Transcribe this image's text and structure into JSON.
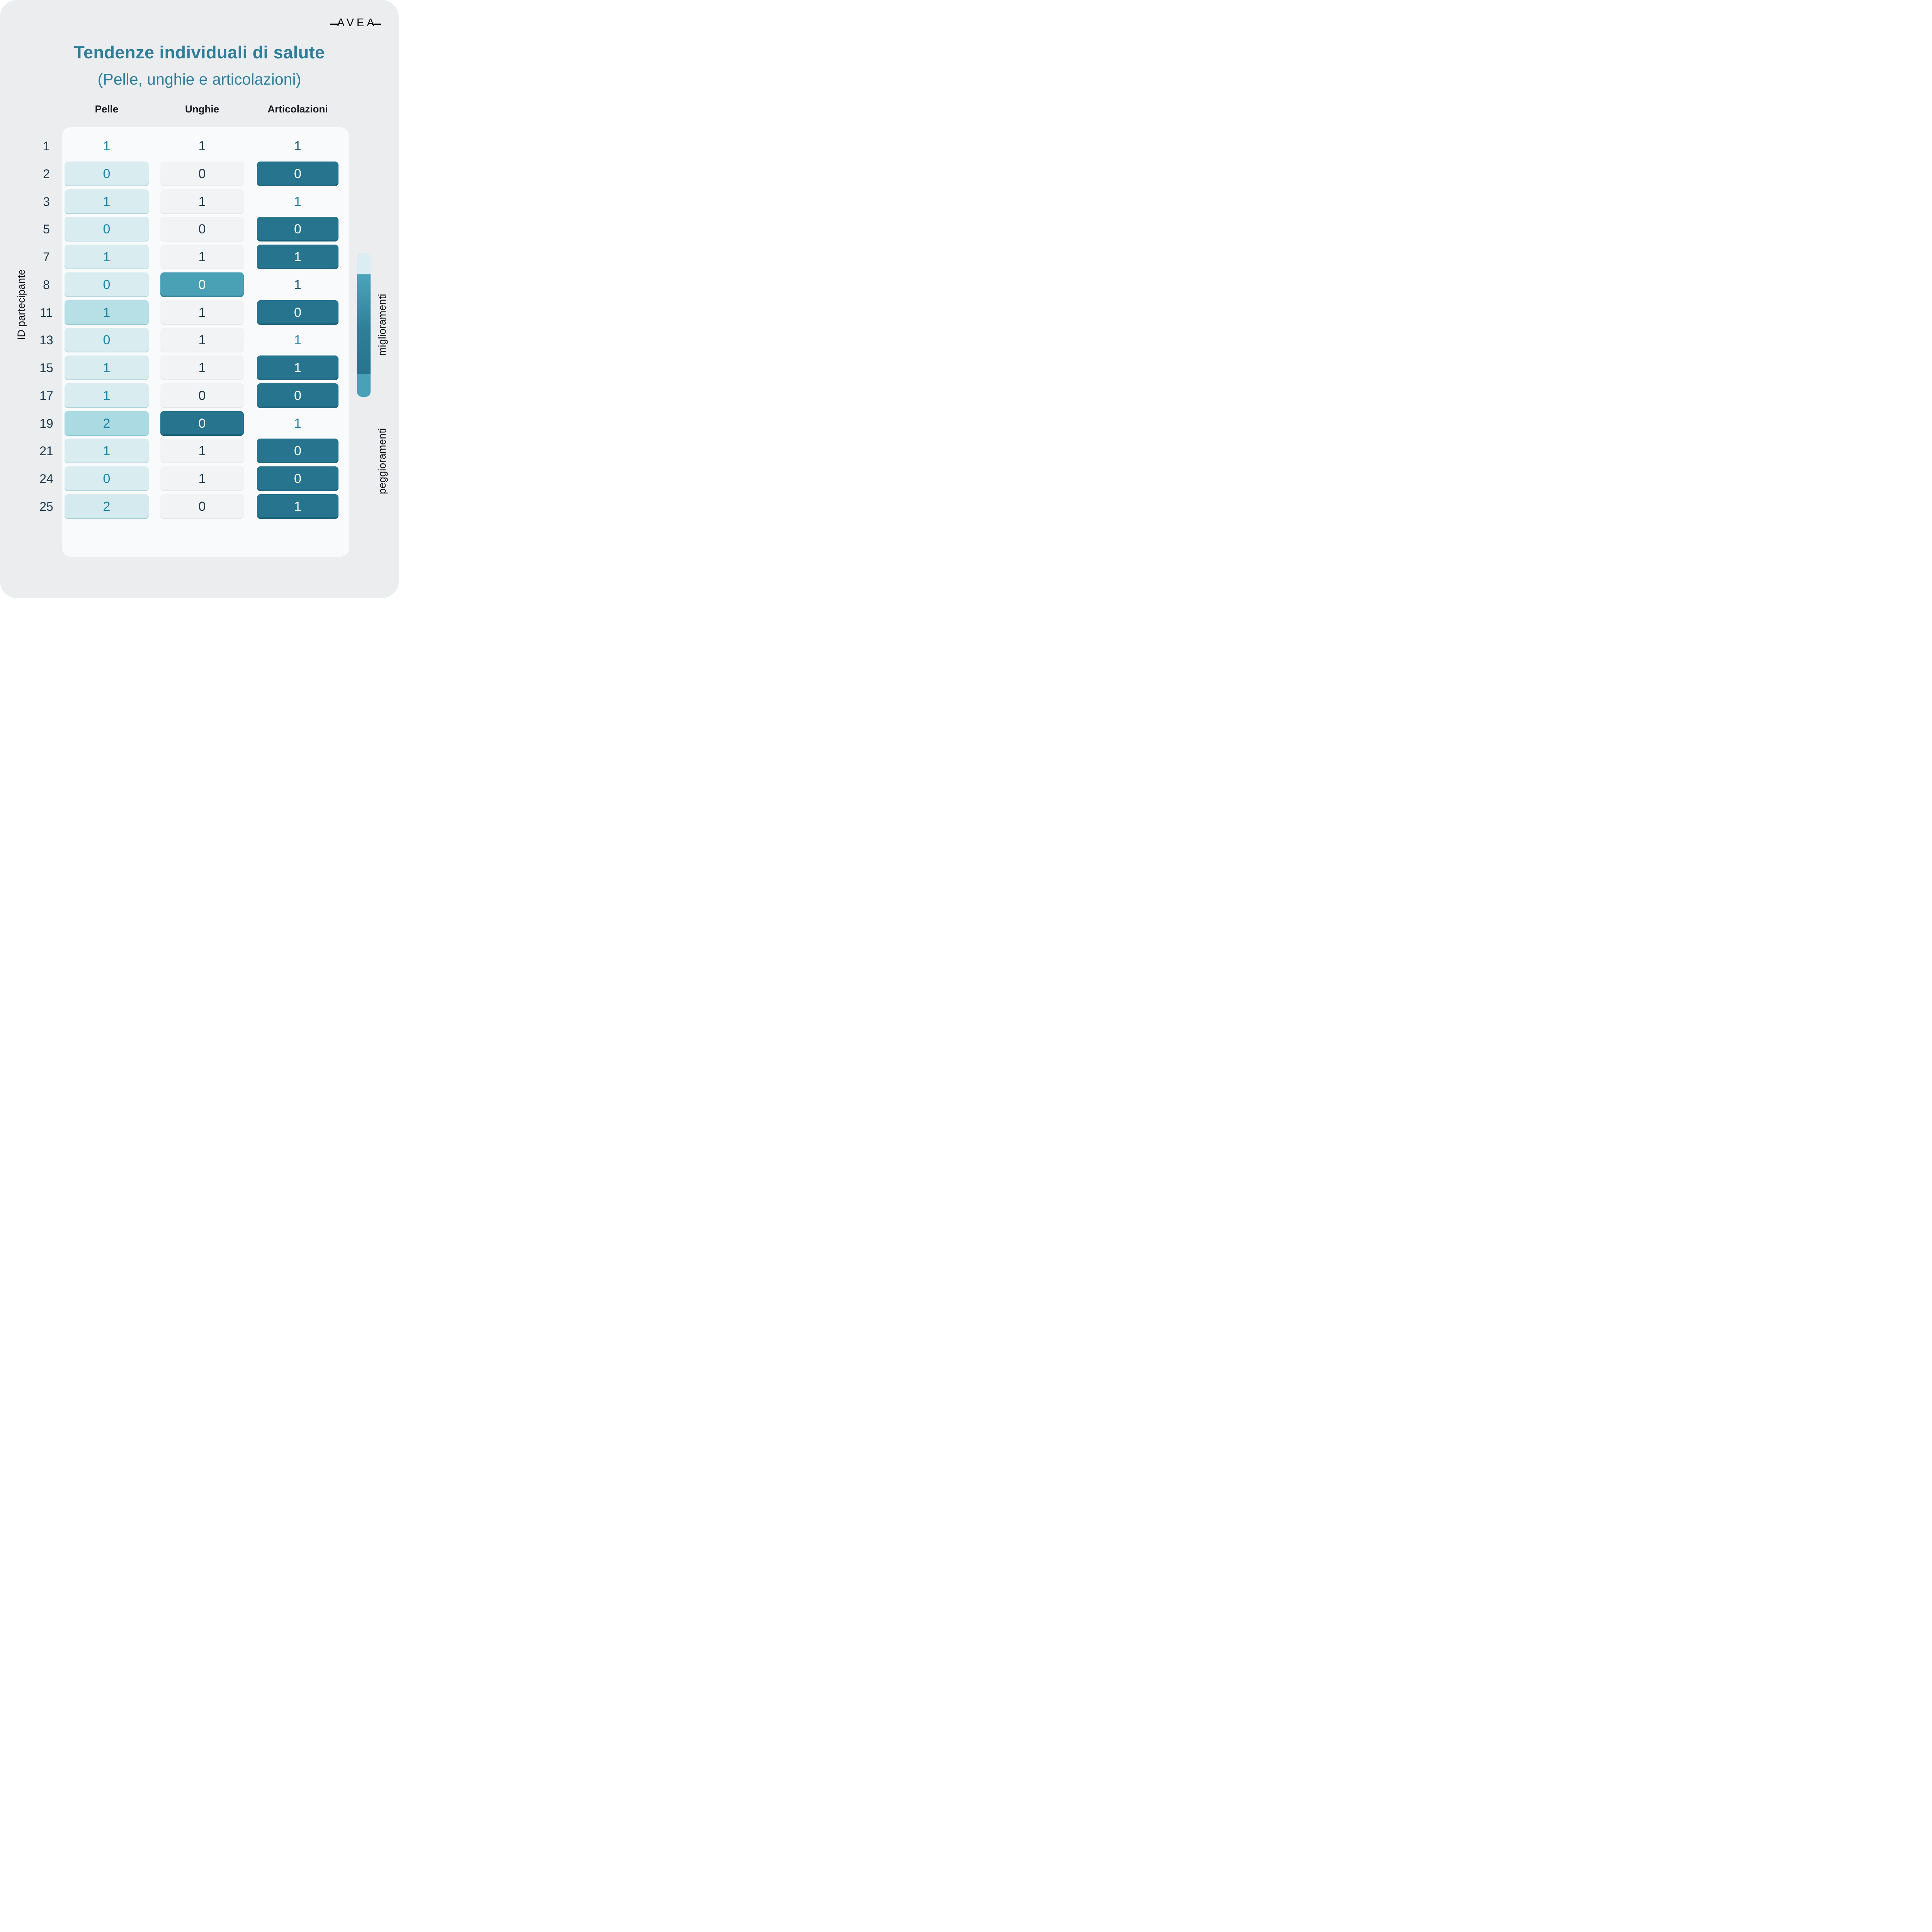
{
  "brand": {
    "logo_text": "AVEA"
  },
  "header": {
    "title": "Tendenze individuali di salute",
    "subtitle": "(Pelle, unghie e articolazioni)"
  },
  "table": {
    "columns": [
      "Pelle",
      "Unghie",
      "Articolazioni"
    ],
    "y_axis_label": "ID partecipante",
    "rows": [
      {
        "id": "1",
        "cells": [
          {
            "v": "1",
            "bg": null,
            "fg": "#1e86a6",
            "tone": "none"
          },
          {
            "v": "1",
            "bg": null,
            "fg": "#16394d",
            "tone": "none"
          },
          {
            "v": "1",
            "bg": null,
            "fg": "#174a5f",
            "tone": "none"
          }
        ]
      },
      {
        "id": "2",
        "cells": [
          {
            "v": "0",
            "bg": "#d9edf0",
            "fg": "#1e86a6",
            "tone": "cyan"
          },
          {
            "v": "0",
            "bg": "#f1f3f5",
            "fg": "#16394d",
            "tone": "gray"
          },
          {
            "v": "0",
            "bg": "#26748e",
            "fg": "#ffffff",
            "tone": "dark"
          }
        ]
      },
      {
        "id": "3",
        "cells": [
          {
            "v": "1",
            "bg": "#d9edf0",
            "fg": "#1e86a6",
            "tone": "cyan"
          },
          {
            "v": "1",
            "bg": "#f1f3f5",
            "fg": "#16394d",
            "tone": "gray"
          },
          {
            "v": "1",
            "bg": null,
            "fg": "#1e7f9f",
            "tone": "none"
          }
        ]
      },
      {
        "id": "5",
        "cells": [
          {
            "v": "0",
            "bg": "#d9edf0",
            "fg": "#1e86a6",
            "tone": "cyan"
          },
          {
            "v": "0",
            "bg": "#f1f3f5",
            "fg": "#16394d",
            "tone": "gray"
          },
          {
            "v": "0",
            "bg": "#26748e",
            "fg": "#ffffff",
            "tone": "dark"
          }
        ]
      },
      {
        "id": "7",
        "cells": [
          {
            "v": "1",
            "bg": "#d9edf0",
            "fg": "#1e86a6",
            "tone": "cyan"
          },
          {
            "v": "1",
            "bg": "#f1f3f5",
            "fg": "#16394d",
            "tone": "gray"
          },
          {
            "v": "1",
            "bg": "#26748e",
            "fg": "#ffffff",
            "tone": "dark"
          }
        ]
      },
      {
        "id": "8",
        "cells": [
          {
            "v": "0",
            "bg": "#d9edf0",
            "fg": "#1e86a6",
            "tone": "cyan"
          },
          {
            "v": "0",
            "bg": "#4aa0b5",
            "fg": "#ffffff",
            "tone": "teal"
          },
          {
            "v": "1",
            "bg": null,
            "fg": "#1b5068",
            "tone": "none"
          }
        ]
      },
      {
        "id": "11",
        "cells": [
          {
            "v": "1",
            "bg": "#b7dfe6",
            "fg": "#1e86a6",
            "tone": "cyan2"
          },
          {
            "v": "1",
            "bg": "#f1f3f5",
            "fg": "#16394d",
            "tone": "gray"
          },
          {
            "v": "0",
            "bg": "#26748e",
            "fg": "#ffffff",
            "tone": "dark"
          }
        ]
      },
      {
        "id": "13",
        "cells": [
          {
            "v": "0",
            "bg": "#d9edf0",
            "fg": "#1e86a6",
            "tone": "cyan"
          },
          {
            "v": "1",
            "bg": "#f1f3f5",
            "fg": "#16394d",
            "tone": "gray"
          },
          {
            "v": "1",
            "bg": null,
            "fg": "#2a87a5",
            "tone": "none"
          }
        ]
      },
      {
        "id": "15",
        "cells": [
          {
            "v": "1",
            "bg": "#d9edf0",
            "fg": "#1e86a6",
            "tone": "cyan"
          },
          {
            "v": "1",
            "bg": "#f1f3f5",
            "fg": "#16394d",
            "tone": "gray"
          },
          {
            "v": "1",
            "bg": "#26748e",
            "fg": "#ffffff",
            "tone": "dark"
          }
        ]
      },
      {
        "id": "17",
        "cells": [
          {
            "v": "1",
            "bg": "#d9edf0",
            "fg": "#1e86a6",
            "tone": "cyan"
          },
          {
            "v": "0",
            "bg": "#f1f3f5",
            "fg": "#16394d",
            "tone": "gray"
          },
          {
            "v": "0",
            "bg": "#26748e",
            "fg": "#ffffff",
            "tone": "dark"
          }
        ]
      },
      {
        "id": "19",
        "cells": [
          {
            "v": "2",
            "bg": "#abdae2",
            "fg": "#1e86a6",
            "tone": "cyan3"
          },
          {
            "v": "0",
            "bg": "#26748e",
            "fg": "#ffffff",
            "tone": "dark"
          },
          {
            "v": "1",
            "bg": null,
            "fg": "#2a7f9e",
            "tone": "none"
          }
        ]
      },
      {
        "id": "21",
        "cells": [
          {
            "v": "1",
            "bg": "#d9edf0",
            "fg": "#1e86a6",
            "tone": "cyan"
          },
          {
            "v": "1",
            "bg": "#f1f3f5",
            "fg": "#16394d",
            "tone": "gray"
          },
          {
            "v": "0",
            "bg": "#26748e",
            "fg": "#ffffff",
            "tone": "dark"
          }
        ]
      },
      {
        "id": "24",
        "cells": [
          {
            "v": "0",
            "bg": "#d9edf0",
            "fg": "#1e86a6",
            "tone": "cyan"
          },
          {
            "v": "1",
            "bg": "#f1f3f5",
            "fg": "#16394d",
            "tone": "gray"
          },
          {
            "v": "0",
            "bg": "#26748e",
            "fg": "#ffffff",
            "tone": "dark"
          }
        ]
      },
      {
        "id": "25",
        "cells": [
          {
            "v": "2",
            "bg": "#d5eaee",
            "fg": "#1e86a6",
            "tone": "cyan4"
          },
          {
            "v": "0",
            "bg": "#f1f3f5",
            "fg": "#16394d",
            "tone": "gray"
          },
          {
            "v": "1",
            "bg": "#26748e",
            "fg": "#ffffff",
            "tone": "dark"
          }
        ]
      }
    ]
  },
  "legend": {
    "top_label": "miglioramenti",
    "bottom_label": "peggioramenti",
    "bar_colors": {
      "cap_top": "#d9edf2",
      "gradient_start": "#4ba5bb",
      "gradient_end": "#26748e",
      "cap_bottom": "#49a1b8"
    }
  },
  "colors": {
    "page_background": "#ecedef",
    "card_background": "#f8fafb",
    "title": "#2e7e9b",
    "header_text": "#16191d",
    "id_text": "#1c3b4e",
    "cell_light_cyan": "#d9edf0",
    "cell_medium_cyan": "#b7dfe6",
    "cell_light_gray": "#f1f3f5",
    "cell_medium_teal": "#4aa0b5",
    "cell_dark_teal": "#26748e"
  },
  "chart_data": {
    "type": "heatmap",
    "title": "Tendenze individuali di salute",
    "subtitle": "(Pelle, unghie e articolazioni)",
    "ylabel": "ID partecipante",
    "categories": [
      "Pelle",
      "Unghie",
      "Articolazioni"
    ],
    "participant_ids": [
      1,
      2,
      3,
      5,
      7,
      8,
      11,
      13,
      15,
      17,
      19,
      21,
      24,
      25
    ],
    "series": [
      {
        "name": "Pelle",
        "values": [
          1,
          0,
          1,
          0,
          1,
          0,
          1,
          0,
          1,
          1,
          2,
          1,
          0,
          2
        ]
      },
      {
        "name": "Unghie",
        "values": [
          1,
          0,
          1,
          0,
          1,
          0,
          1,
          1,
          1,
          0,
          0,
          1,
          1,
          0
        ]
      },
      {
        "name": "Articolazioni",
        "values": [
          1,
          0,
          1,
          0,
          1,
          1,
          0,
          1,
          1,
          0,
          1,
          0,
          0,
          1
        ]
      }
    ],
    "legend": {
      "position": "right",
      "top_label": "miglioramenti",
      "bottom_label": "peggioramenti"
    },
    "grid": false
  }
}
